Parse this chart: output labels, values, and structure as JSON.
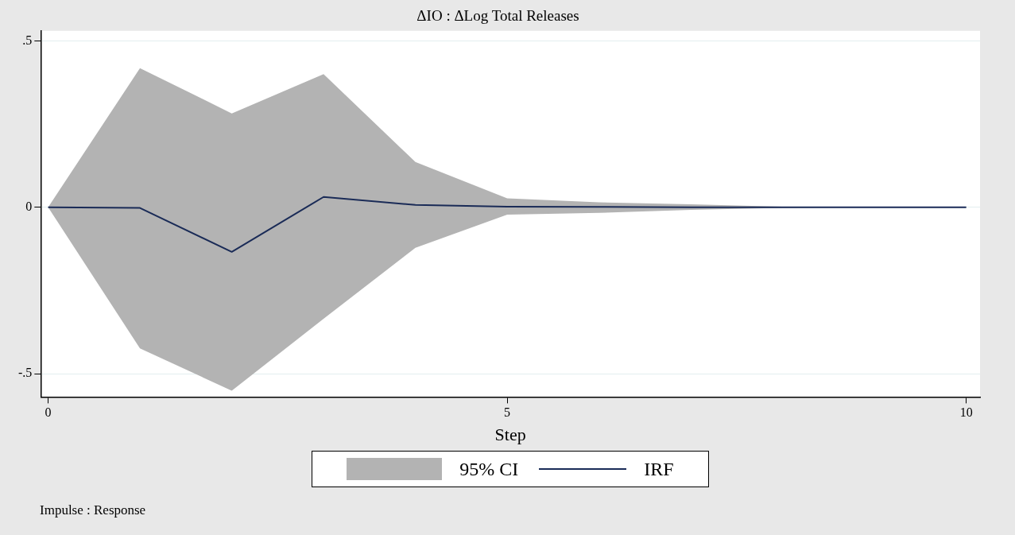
{
  "chart_data": {
    "type": "line",
    "title": "ΔIO : ΔLog Total Releases",
    "xlabel": "Step",
    "x": [
      0,
      1,
      2,
      3,
      4,
      5,
      6,
      7,
      8,
      9,
      10
    ],
    "series": [
      {
        "name": "IRF",
        "type": "line",
        "color": "#1a2b57",
        "values": [
          0,
          -0.002,
          -0.134,
          0.031,
          0.007,
          0.002,
          0.001,
          0,
          0,
          0,
          0
        ],
        "lower": [
          0,
          -0.424,
          -0.551,
          -0.335,
          -0.122,
          -0.022,
          -0.017,
          -0.008,
          -0.002,
          0,
          0
        ],
        "upper": [
          0,
          0.418,
          0.282,
          0.4,
          0.136,
          0.027,
          0.015,
          0.009,
          0.002,
          0,
          0
        ]
      }
    ],
    "xlim": [
      -0.08,
      10.15
    ],
    "xticks": [
      0,
      5,
      10
    ],
    "ylim": [
      -0.57,
      0.53
    ],
    "yticks": [
      {
        "value": -0.5,
        "label": "-.5"
      },
      0,
      {
        "value": 0.5,
        "label": ".5"
      }
    ],
    "grid": "y",
    "legend": "bottom",
    "marker": "none",
    "annotations": [
      "95% CI",
      "Impulse : Response"
    ]
  }
}
